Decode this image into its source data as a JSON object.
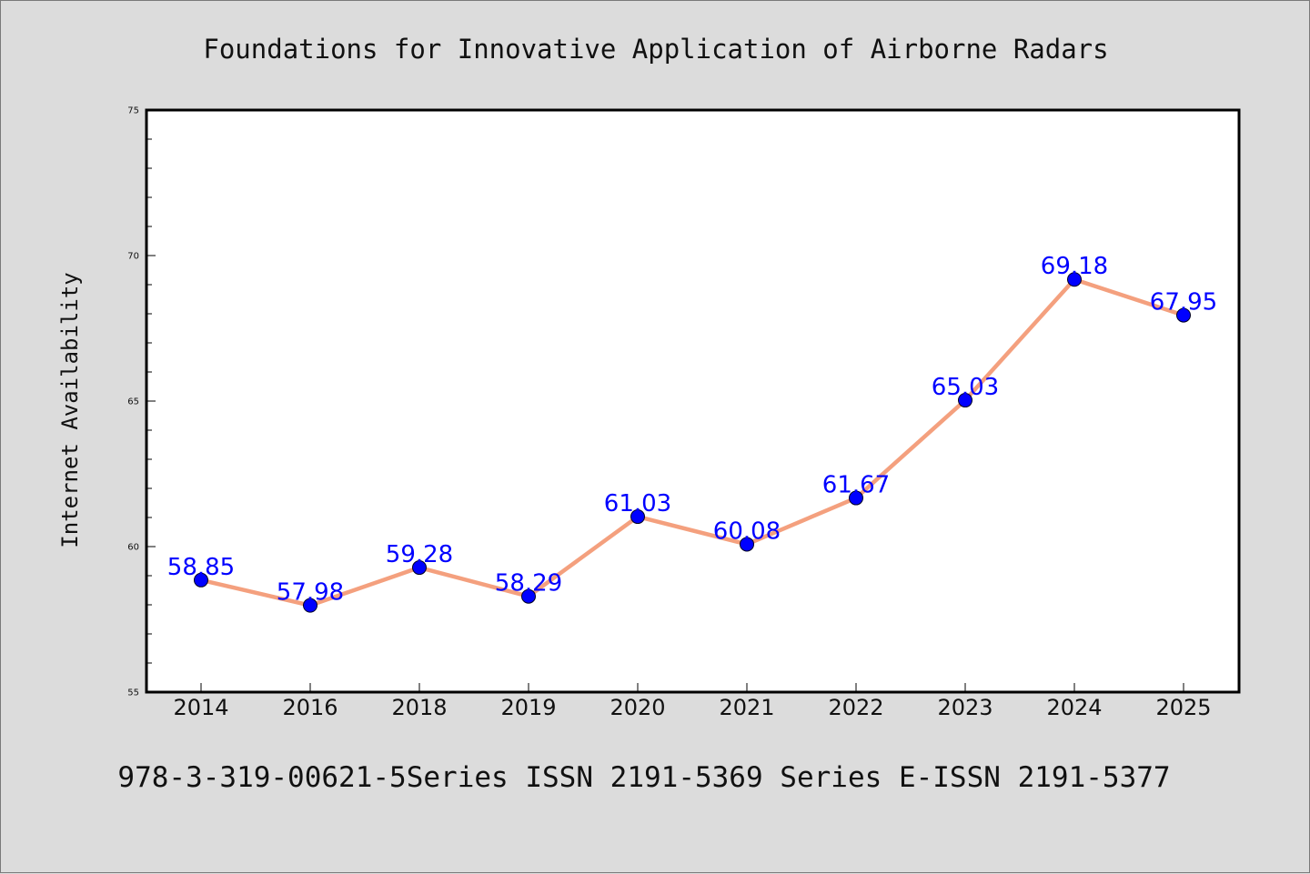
{
  "figure": {
    "title": "Foundations for Innovative Application of Airborne Radars",
    "footer": "978-3-319-00621-5Series ISSN 2191-5369 Series E-ISSN 2191-5377"
  },
  "chart_data": {
    "type": "line",
    "title": "Foundations for Innovative Application of Airborne Radars",
    "xlabel": "",
    "ylabel": "Internet Availability",
    "categories": [
      "2014",
      "2016",
      "2018",
      "2019",
      "2020",
      "2021",
      "2022",
      "2023",
      "2024",
      "2025"
    ],
    "series": [
      {
        "values": [
          58.85,
          57.98,
          59.28,
          58.29,
          61.03,
          60.08,
          61.67,
          65.03,
          69.18,
          67.95
        ],
        "data_labels": [
          "58.85",
          "57.98",
          "59.28",
          "58.29",
          "61.03",
          "60.08",
          "61.67",
          "65.03",
          "69.18",
          "67.95"
        ]
      }
    ],
    "ylim": [
      55,
      75
    ],
    "yticks": [
      "55",
      "60",
      "65",
      "70",
      "75"
    ],
    "grid": false,
    "legend": "none",
    "colors": {
      "line": "#f4a07e",
      "marker": "#0000ff",
      "data_label": "#0000ff",
      "plot_background": "#ffffff",
      "figure_background": "#dcdcdc"
    }
  }
}
